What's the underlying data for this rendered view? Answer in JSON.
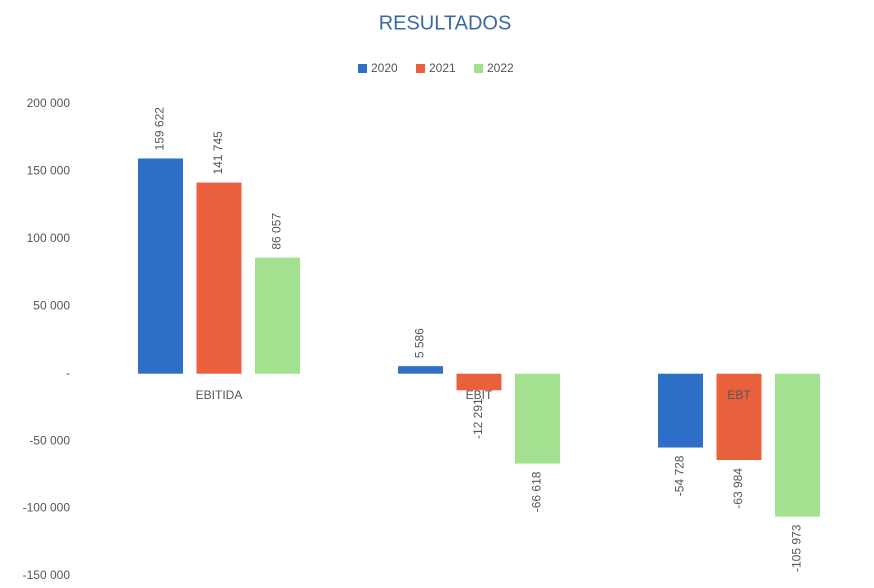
{
  "chart_data": {
    "type": "bar",
    "title": "RESULTADOS",
    "categories": [
      "EBITIDA",
      "EBIT",
      "EBT"
    ],
    "series": [
      {
        "name": "2020",
        "color": "#2e6fc7",
        "values": [
          159622,
          5586,
          -54728
        ],
        "value_labels": [
          "159 622",
          "5 586",
          "-54 728"
        ]
      },
      {
        "name": "2021",
        "color": "#e8603c",
        "values": [
          141745,
          -12291,
          -63984
        ],
        "value_labels": [
          "141 745",
          "-12 291",
          "-63 984"
        ]
      },
      {
        "name": "2022",
        "color": "#a3e08f",
        "values": [
          86057,
          -66618,
          -105973
        ],
        "value_labels": [
          "86 057",
          "-66 618",
          "-105 973"
        ]
      }
    ],
    "ylim": [
      -150000,
      200000
    ],
    "yticks": [
      {
        "value": -150000,
        "label": "-150 000"
      },
      {
        "value": -100000,
        "label": "-100 000"
      },
      {
        "value": -50000,
        "label": "-50 000"
      },
      {
        "value": 0,
        "label": "-"
      },
      {
        "value": 50000,
        "label": "50 000"
      },
      {
        "value": 100000,
        "label": "100 000"
      },
      {
        "value": 150000,
        "label": "150 000"
      },
      {
        "value": 200000,
        "label": "200 000"
      }
    ],
    "grid": false,
    "legend": "top"
  }
}
